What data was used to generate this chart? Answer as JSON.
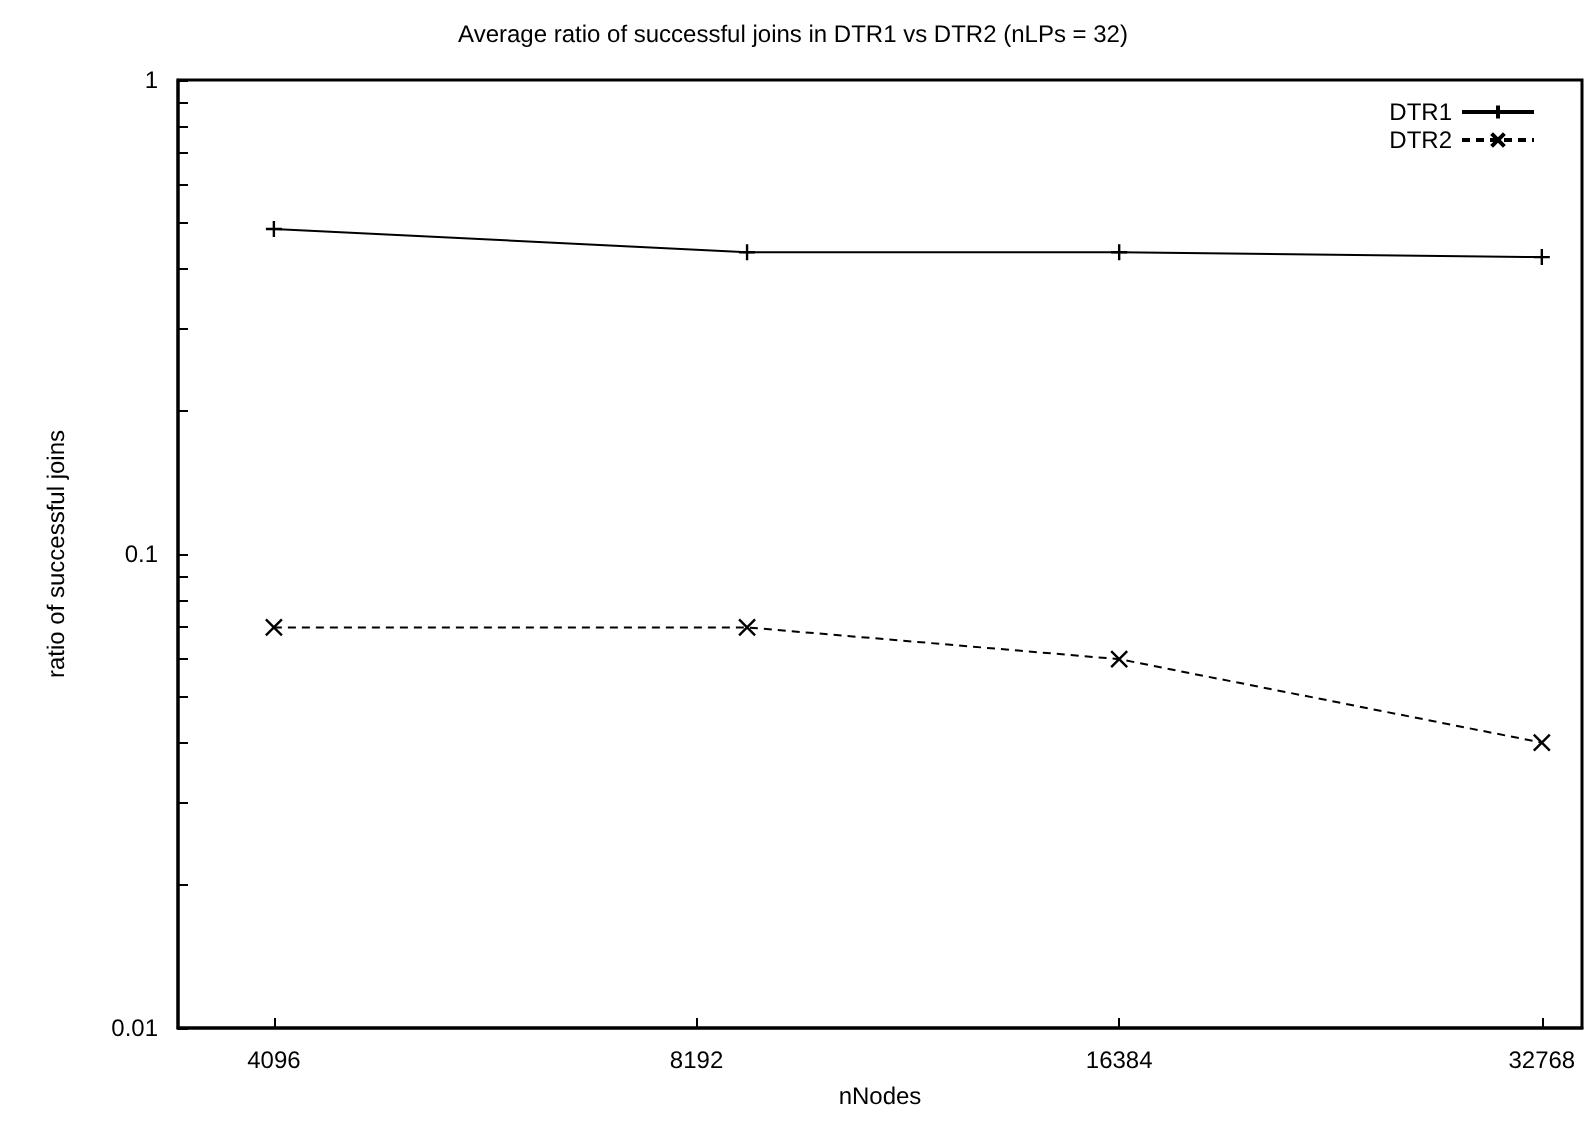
{
  "chart_data": {
    "type": "line",
    "title": "Average ratio of successful joins in DTR1 vs DTR2 (nLPs = 32)",
    "xlabel": "nNodes",
    "ylabel": "ratio of successful joins",
    "log": "xy",
    "xlim": [
      3500,
      35000
    ],
    "xticks": [
      4096,
      8192,
      16384,
      32768
    ],
    "ylim": [
      0.01,
      1
    ],
    "yticks": [
      0.01,
      {
        "value": 0.02,
        "label": null
      },
      {
        "value": 0.03,
        "label": null
      },
      {
        "value": 0.04,
        "label": null
      },
      {
        "value": 0.05,
        "label": null
      },
      {
        "value": 0.06,
        "label": null
      },
      {
        "value": 0.07,
        "label": null
      },
      {
        "value": 0.08,
        "label": null
      },
      {
        "value": 0.09,
        "label": null
      },
      0.1,
      {
        "value": 0.2,
        "label": null
      },
      {
        "value": 0.3,
        "label": null
      },
      {
        "value": 0.4,
        "label": null
      },
      {
        "value": 0.5,
        "label": null
      },
      {
        "value": 0.6,
        "label": null
      },
      {
        "value": 0.7,
        "label": null
      },
      {
        "value": 0.8,
        "label": null
      },
      {
        "value": 0.9,
        "label": null
      },
      1
    ],
    "grid": false,
    "legend": "top right",
    "series": [
      {
        "name": "DTR1",
        "color": "#000000",
        "marker": "plus",
        "line_style": "solid",
        "x": [
          4096,
          8900,
          16384,
          32768
        ],
        "values": [
          0.485,
          0.433,
          0.433,
          0.423
        ]
      },
      {
        "name": "DTR2",
        "color": "#000000",
        "marker": "cross",
        "line_style": "dashed",
        "x": [
          4096,
          8900,
          16384,
          32768
        ],
        "values": [
          0.07,
          0.07,
          0.06,
          0.04
        ]
      }
    ]
  }
}
